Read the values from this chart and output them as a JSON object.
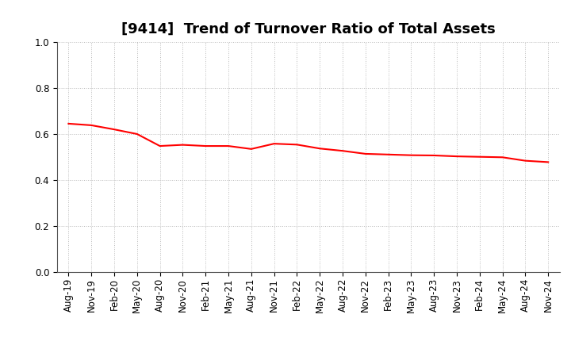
{
  "title": "[9414]  Trend of Turnover Ratio of Total Assets",
  "x_labels": [
    "Aug-19",
    "Nov-19",
    "Feb-20",
    "May-20",
    "Aug-20",
    "Nov-20",
    "Feb-21",
    "May-21",
    "Aug-21",
    "Nov-21",
    "Feb-22",
    "May-22",
    "Aug-22",
    "Nov-22",
    "Feb-23",
    "May-23",
    "Aug-23",
    "Nov-23",
    "Feb-24",
    "May-24",
    "Aug-24",
    "Nov-24"
  ],
  "y_values": [
    0.645,
    0.638,
    0.62,
    0.6,
    0.548,
    0.553,
    0.548,
    0.548,
    0.535,
    0.558,
    0.554,
    0.537,
    0.527,
    0.514,
    0.511,
    0.508,
    0.507,
    0.503,
    0.501,
    0.499,
    0.484,
    0.478
  ],
  "line_color": "#FF0000",
  "line_width": 1.5,
  "ylim": [
    0.0,
    1.0
  ],
  "yticks": [
    0.0,
    0.2,
    0.4,
    0.6,
    0.8,
    1.0
  ],
  "background_color": "#FFFFFF",
  "plot_bg_color": "#FFFFFF",
  "grid_color": "#BBBBBB",
  "title_fontsize": 13,
  "tick_fontsize": 8.5
}
